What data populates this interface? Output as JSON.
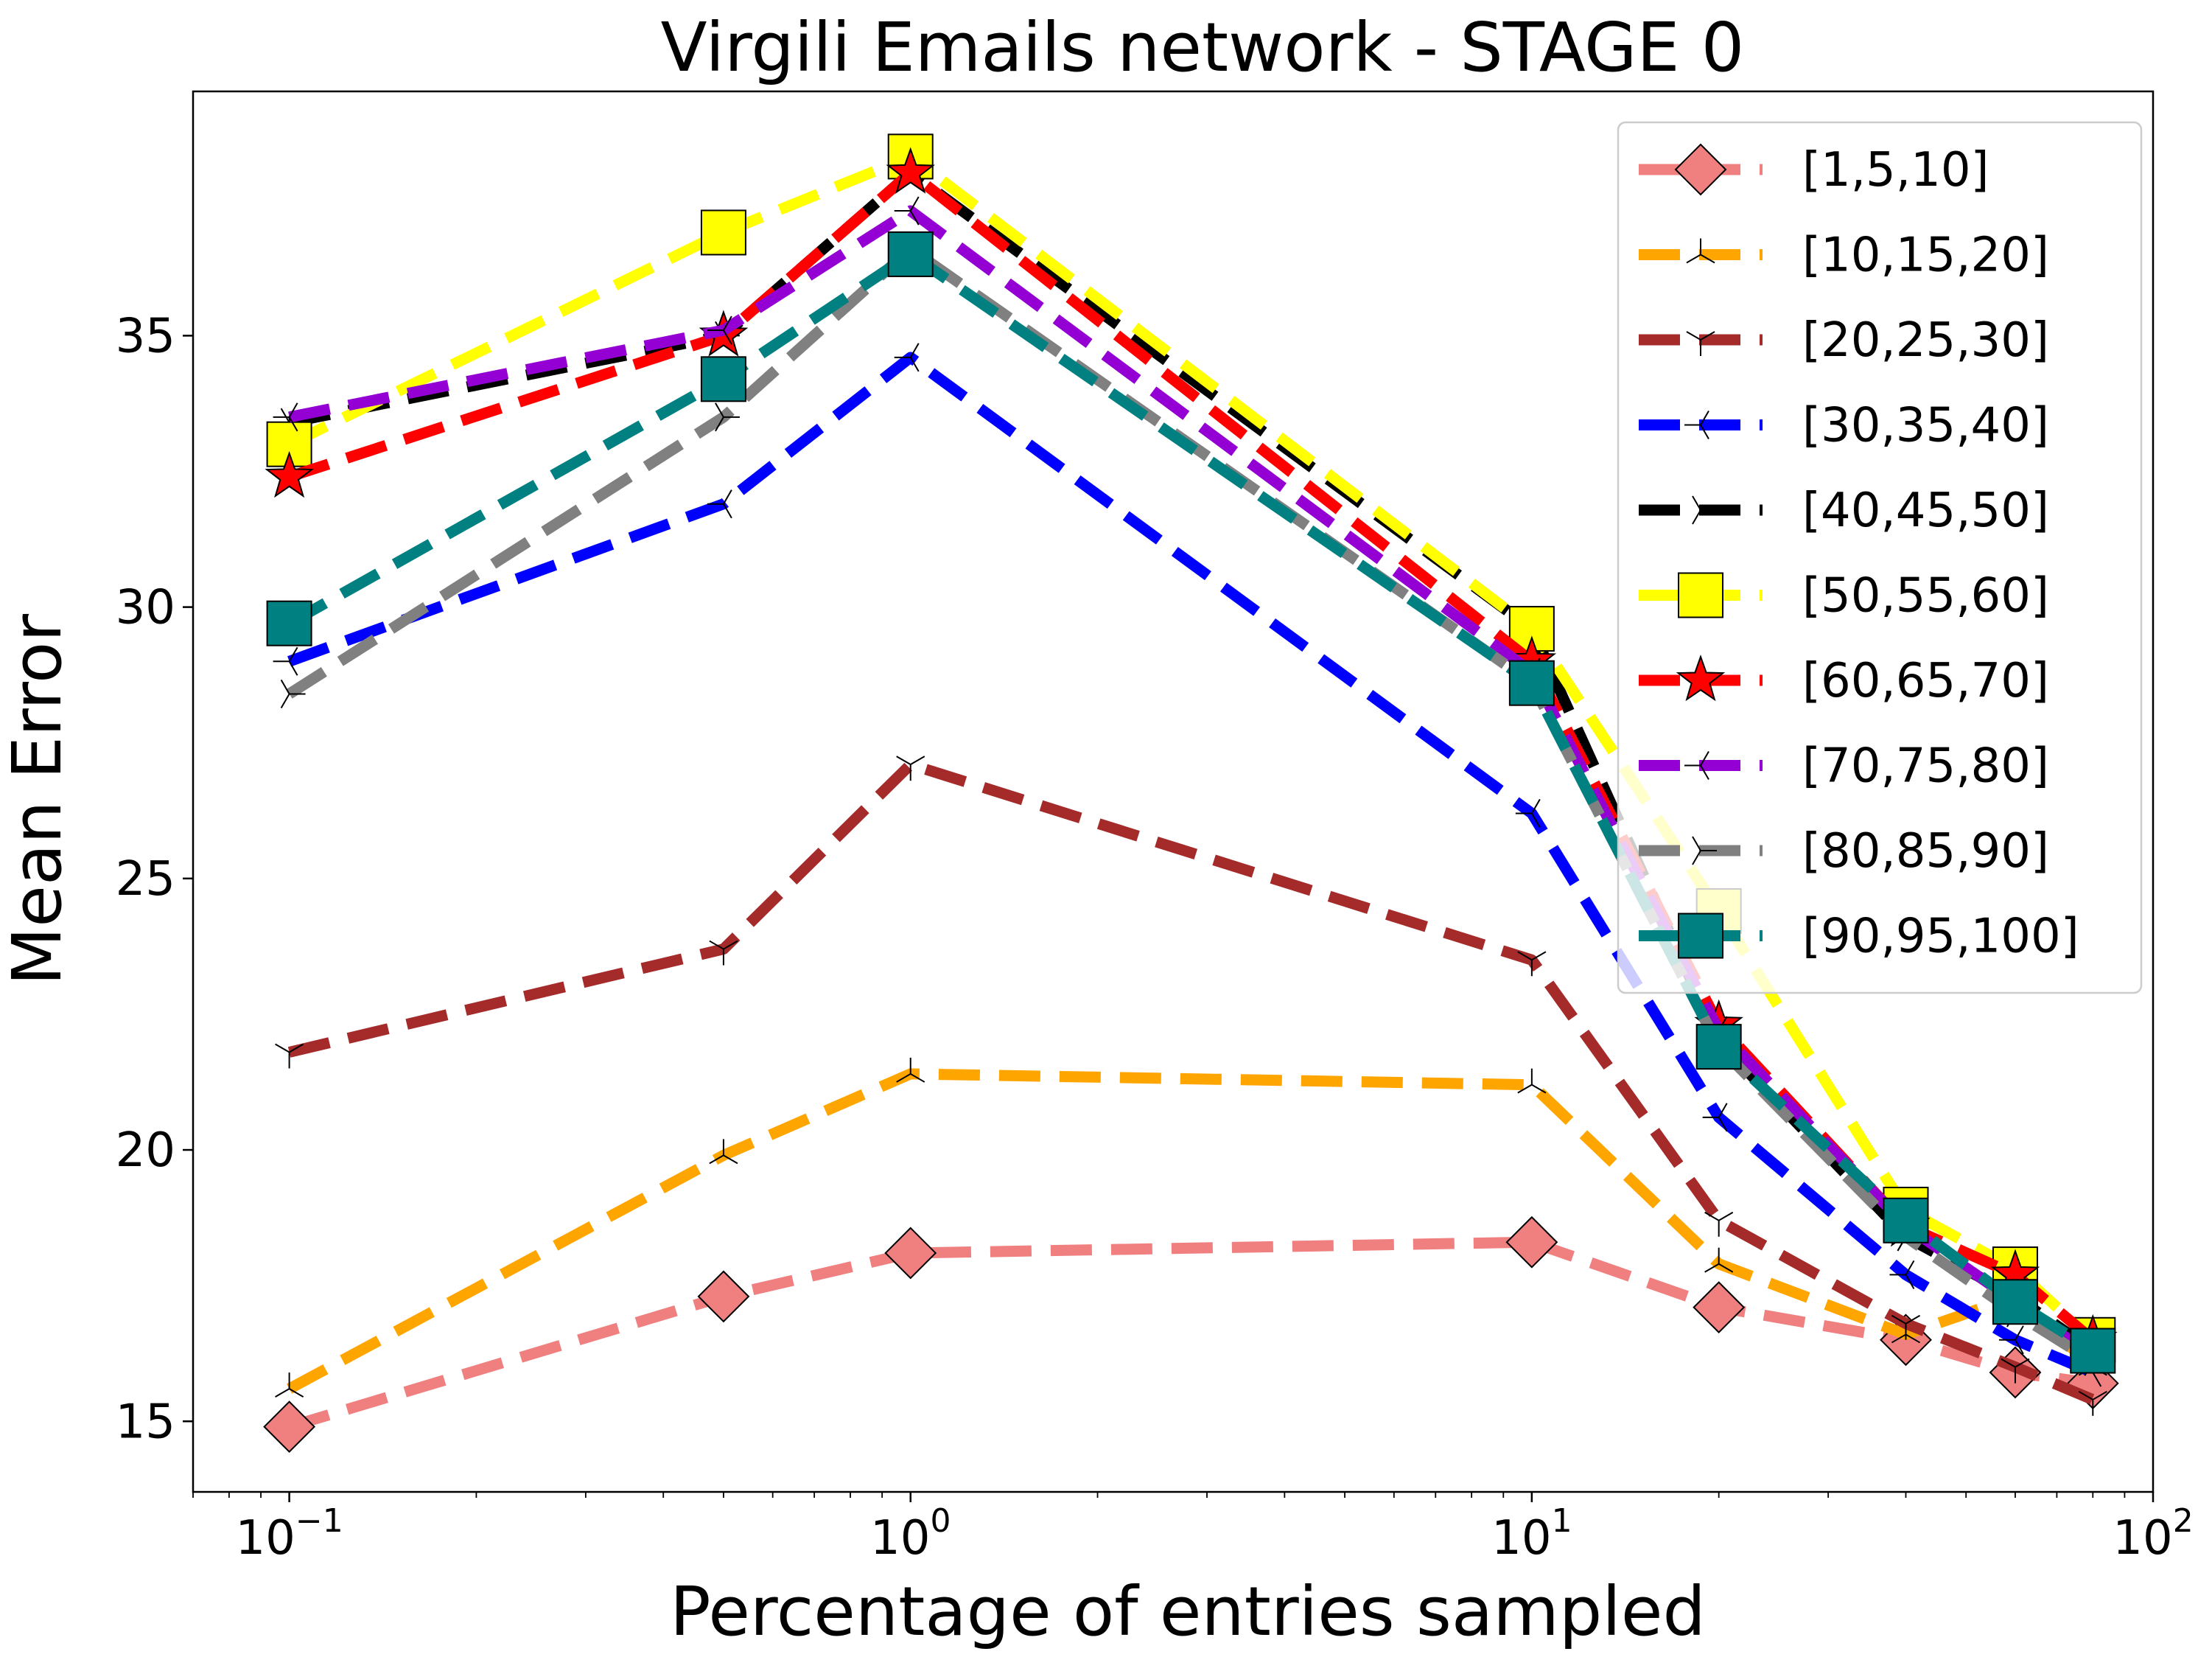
{
  "chart_data": {
    "type": "line",
    "title": "Virgili Emails network - STAGE 0",
    "xlabel": "Percentage of entries sampled",
    "ylabel": "Mean Error",
    "xscale": "log",
    "xlim": [
      0.07,
      100
    ],
    "ylim": [
      13.7,
      39.5
    ],
    "xticks": [
      {
        "base": "10",
        "exp": "−1",
        "value": 0.1
      },
      {
        "base": "10",
        "exp": "0",
        "value": 1
      },
      {
        "base": "10",
        "exp": "1",
        "value": 10
      },
      {
        "base": "10",
        "exp": "2",
        "value": 100
      }
    ],
    "yticks": [
      15,
      20,
      25,
      30,
      35
    ],
    "legend_position": "upper-right",
    "grid": false,
    "x": [
      0.1,
      0.5,
      1,
      10,
      20,
      40,
      60,
      80
    ],
    "series": [
      {
        "name": "[1,5,10]",
        "color": "#f08080",
        "marker": "diamond",
        "values": [
          14.9,
          17.3,
          18.1,
          18.3,
          17.1,
          16.5,
          15.9,
          15.7
        ]
      },
      {
        "name": "[10,15,20]",
        "color": "#ffa500",
        "marker": "tri_down",
        "values": [
          15.6,
          19.9,
          21.4,
          21.2,
          17.9,
          16.6,
          17.3,
          16.0
        ]
      },
      {
        "name": "[20,25,30]",
        "color": "#a52a2a",
        "marker": "tri_up",
        "values": [
          21.8,
          23.7,
          27.1,
          23.5,
          18.7,
          16.8,
          16.0,
          15.4
        ]
      },
      {
        "name": "[30,35,40]",
        "color": "#0000ff",
        "marker": "tri_left",
        "values": [
          29.0,
          31.9,
          34.6,
          26.2,
          20.6,
          17.7,
          16.5,
          15.9
        ]
      },
      {
        "name": "[40,45,50]",
        "color": "#000000",
        "marker": "tri_right",
        "values": [
          33.4,
          35.0,
          38.0,
          29.6,
          22.0,
          18.4,
          17.3,
          16.3
        ]
      },
      {
        "name": "[50,55,60]",
        "color": "#ffff00",
        "marker": "square",
        "values": [
          33.0,
          36.9,
          38.3,
          29.6,
          24.4,
          18.9,
          17.8,
          16.5
        ]
      },
      {
        "name": "[60,65,70]",
        "color": "#ff0000",
        "marker": "star",
        "values": [
          32.4,
          35.0,
          38.0,
          29.0,
          22.3,
          18.6,
          17.7,
          16.5
        ]
      },
      {
        "name": "[70,75,80]",
        "color": "#9400d3",
        "marker": "tri_left",
        "values": [
          33.5,
          35.1,
          37.3,
          28.8,
          22.2,
          18.6,
          17.2,
          16.2
        ]
      },
      {
        "name": "[80,85,90]",
        "color": "#808080",
        "marker": "tri_right",
        "values": [
          28.4,
          33.5,
          36.6,
          28.6,
          21.9,
          18.4,
          17.0,
          16.1
        ]
      },
      {
        "name": "[90,95,100]",
        "color": "#008080",
        "marker": "square",
        "values": [
          29.7,
          34.2,
          36.5,
          28.6,
          21.9,
          18.7,
          17.2,
          16.3
        ]
      }
    ]
  }
}
